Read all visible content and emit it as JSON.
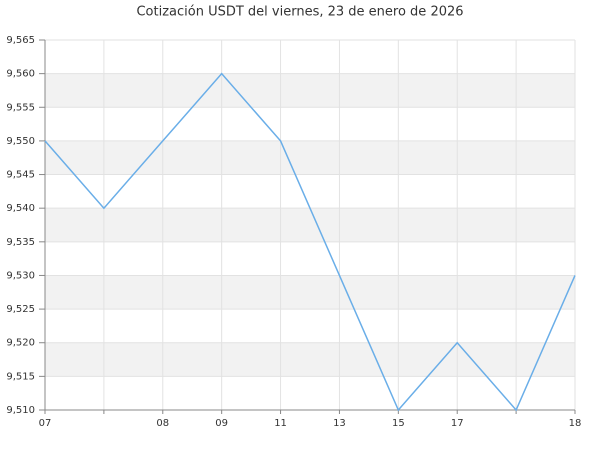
{
  "chart_data": {
    "type": "line",
    "title": "Cotización USDT del viernes, 23 de enero de 2026",
    "categories": [
      "07",
      null,
      "08",
      "09",
      "11",
      "13",
      "15",
      "17",
      null,
      "18"
    ],
    "series": [
      {
        "name": "USDT",
        "color": "#6aaee8",
        "values": [
          9.55,
          9.54,
          9.55,
          9.56,
          9.55,
          9.53,
          9.51,
          9.52,
          9.51,
          9.53
        ]
      }
    ],
    "ylim": [
      9.51,
      9.565
    ],
    "yticks": [
      {
        "value": 9.51,
        "label": "9,510"
      },
      {
        "value": 9.515,
        "label": "9,515"
      },
      {
        "value": 9.52,
        "label": "9,520"
      },
      {
        "value": 9.525,
        "label": "9,525"
      },
      {
        "value": 9.53,
        "label": "9,530"
      },
      {
        "value": 9.535,
        "label": "9,535"
      },
      {
        "value": 9.54,
        "label": "9,540"
      },
      {
        "value": 9.545,
        "label": "9,545"
      },
      {
        "value": 9.55,
        "label": "9,550"
      },
      {
        "value": 9.555,
        "label": "9,555"
      },
      {
        "value": 9.56,
        "label": "9,560"
      },
      {
        "value": 9.565,
        "label": "9,565"
      }
    ],
    "grid": true
  }
}
